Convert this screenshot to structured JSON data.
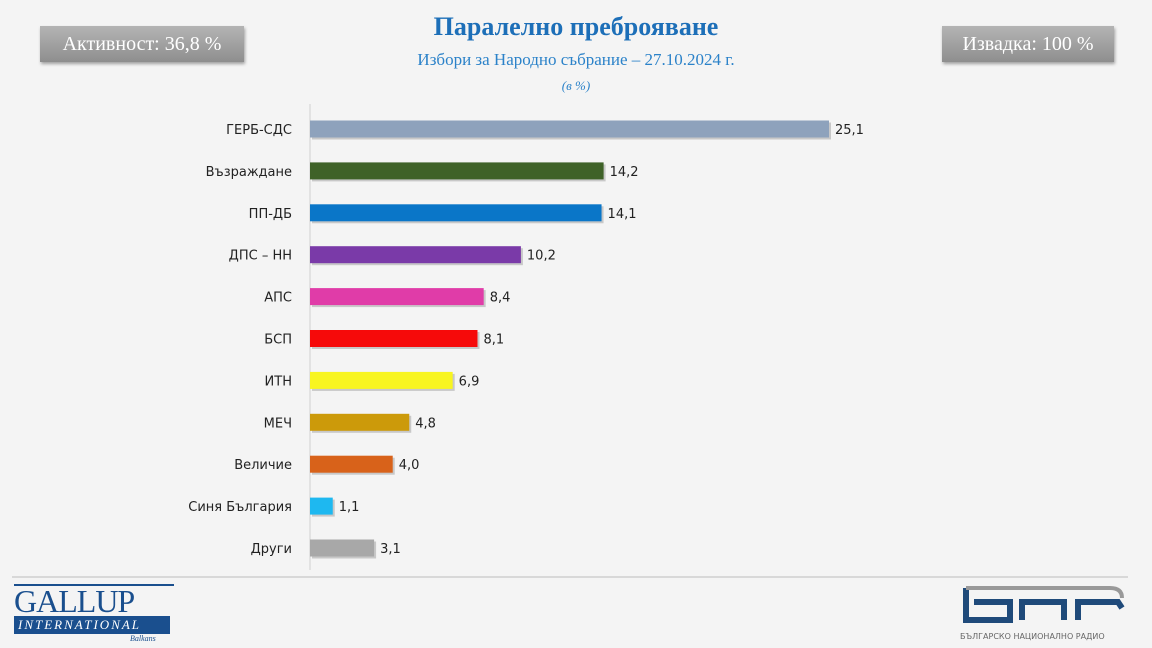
{
  "header": {
    "turnout": "Активност: 36,8 %",
    "sample": "Извадка: 100 %"
  },
  "chart_data": {
    "type": "bar",
    "orientation": "horizontal",
    "title": "Паралелно преброяване",
    "subtitle": "Избори за Народно събрание – 27.10.2024 г.",
    "unit": "(в %)",
    "categories": [
      "ГЕРБ-СДС",
      "Възраждане",
      "ПП-ДБ",
      "ДПС – НН",
      "АПС",
      "БСП",
      "ИТН",
      "МЕЧ",
      "Величие",
      "Синя България",
      "Други"
    ],
    "values": [
      25.1,
      14.2,
      14.1,
      10.2,
      8.4,
      8.1,
      6.9,
      4.8,
      4.0,
      1.1,
      3.1
    ],
    "value_labels": [
      "25,1",
      "14,2",
      "14,1",
      "10,2",
      "8,4",
      "8,1",
      "6,9",
      "4,8",
      "4,0",
      "1,1",
      "3,1"
    ],
    "colors": [
      "#8ea2bc",
      "#3f6228",
      "#0a76c8",
      "#7a3aa8",
      "#e03ca8",
      "#f60a0a",
      "#f8f520",
      "#cc9a0a",
      "#d8621a",
      "#1eb8f0",
      "#a8a8a8"
    ],
    "xlim": [
      0,
      27
    ],
    "grid": false,
    "legend": "none"
  },
  "footer": {
    "gallup_logo": "GALLUP INTERNATIONAL Balkans",
    "bnr_logo": "БНР",
    "bnr_caption": "БЪЛГАРСКО НАЦИОНАЛНО РАДИО"
  }
}
